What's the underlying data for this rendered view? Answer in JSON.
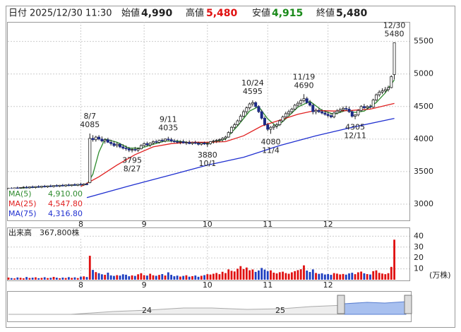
{
  "header": {
    "items": [
      {
        "label": "日付",
        "value": "2025/12/30 11:30"
      },
      {
        "label": "始値",
        "value": "4,990"
      },
      {
        "label": "高値",
        "value": "5,480"
      },
      {
        "label": "安値",
        "value": "4,915"
      },
      {
        "label": "終値",
        "value": "5,480"
      }
    ]
  },
  "chart_data": [
    {
      "type": "candlestick",
      "categories": [
        null,
        null,
        null,
        null,
        null,
        null,
        null,
        null,
        null,
        null,
        null,
        null,
        null,
        null,
        null,
        null,
        null,
        null,
        null,
        null,
        null,
        null,
        null,
        null,
        null,
        null,
        null,
        "8/7",
        null,
        null,
        null,
        null,
        null,
        null,
        null,
        null,
        null,
        null,
        null,
        null,
        null,
        "8/27",
        null,
        null,
        null,
        null,
        null,
        null,
        null,
        null,
        null,
        null,
        null,
        "9/11",
        null,
        null,
        null,
        null,
        null,
        null,
        null,
        null,
        null,
        null,
        null,
        null,
        "10/1",
        null,
        null,
        null,
        null,
        null,
        null,
        null,
        null,
        null,
        null,
        null,
        null,
        null,
        null,
        "10/24",
        null,
        null,
        null,
        null,
        null,
        "11/4",
        null,
        null,
        null,
        null,
        null,
        null,
        null,
        null,
        null,
        null,
        "11/19",
        null,
        null,
        null,
        null,
        null,
        null,
        null,
        null,
        null,
        null,
        null,
        null,
        null,
        null,
        null,
        null,
        "12/11",
        null,
        null,
        null,
        null,
        null,
        null,
        null,
        null,
        null,
        null,
        null,
        null,
        "12/30"
      ],
      "ohlc": [
        [
          3230,
          3250,
          3210,
          3240
        ],
        [
          3240,
          3260,
          3220,
          3235
        ],
        [
          3235,
          3255,
          3215,
          3250
        ],
        [
          3250,
          3270,
          3230,
          3245
        ],
        [
          3245,
          3260,
          3225,
          3255
        ],
        [
          3255,
          3275,
          3240,
          3260
        ],
        [
          3260,
          3280,
          3240,
          3250
        ],
        [
          3250,
          3270,
          3235,
          3265
        ],
        [
          3265,
          3285,
          3245,
          3255
        ],
        [
          3255,
          3275,
          3240,
          3270
        ],
        [
          3270,
          3290,
          3250,
          3260
        ],
        [
          3260,
          3280,
          3245,
          3275
        ],
        [
          3275,
          3295,
          3255,
          3265
        ],
        [
          3265,
          3285,
          3250,
          3280
        ],
        [
          3280,
          3300,
          3260,
          3270
        ],
        [
          3270,
          3290,
          3255,
          3285
        ],
        [
          3285,
          3305,
          3265,
          3275
        ],
        [
          3275,
          3295,
          3260,
          3290
        ],
        [
          3290,
          3310,
          3270,
          3280
        ],
        [
          3280,
          3300,
          3265,
          3295
        ],
        [
          3295,
          3315,
          3275,
          3285
        ],
        [
          3285,
          3305,
          3270,
          3300
        ],
        [
          3300,
          3320,
          3280,
          3290
        ],
        [
          3290,
          3310,
          3275,
          3305
        ],
        [
          3305,
          3330,
          3285,
          3295
        ],
        [
          3295,
          3320,
          3280,
          3310
        ],
        [
          3310,
          3330,
          3290,
          3300
        ],
        [
          3330,
          4085,
          3320,
          4010
        ],
        [
          4010,
          4060,
          3960,
          3990
        ],
        [
          3990,
          4050,
          3960,
          4030
        ],
        [
          4030,
          4060,
          3980,
          4000
        ],
        [
          4000,
          4040,
          3950,
          3970
        ],
        [
          3970,
          4010,
          3930,
          3990
        ],
        [
          3990,
          4020,
          3940,
          3950
        ],
        [
          3950,
          3990,
          3900,
          3930
        ],
        [
          3930,
          3970,
          3880,
          3900
        ],
        [
          3900,
          3950,
          3870,
          3920
        ],
        [
          3920,
          3940,
          3860,
          3880
        ],
        [
          3880,
          3920,
          3840,
          3860
        ],
        [
          3860,
          3900,
          3820,
          3850
        ],
        [
          3850,
          3880,
          3800,
          3830
        ],
        [
          3830,
          3860,
          3795,
          3840
        ],
        [
          3840,
          3880,
          3810,
          3830
        ],
        [
          3830,
          3870,
          3800,
          3850
        ],
        [
          3850,
          3920,
          3840,
          3900
        ],
        [
          3900,
          3950,
          3880,
          3930
        ],
        [
          3930,
          3960,
          3890,
          3910
        ],
        [
          3910,
          3950,
          3880,
          3940
        ],
        [
          3940,
          3980,
          3910,
          3960
        ],
        [
          3960,
          3990,
          3930,
          3950
        ],
        [
          3950,
          3990,
          3930,
          3980
        ],
        [
          3980,
          4010,
          3950,
          3970
        ],
        [
          3970,
          4010,
          3950,
          4000
        ],
        [
          4000,
          4035,
          3970,
          3990
        ],
        [
          3990,
          4020,
          3950,
          3970
        ],
        [
          3970,
          4000,
          3940,
          3960
        ],
        [
          3960,
          3990,
          3930,
          3950
        ],
        [
          3950,
          3980,
          3920,
          3960
        ],
        [
          3960,
          3990,
          3930,
          3940
        ],
        [
          3940,
          3970,
          3910,
          3950
        ],
        [
          3950,
          3980,
          3920,
          3930
        ],
        [
          3930,
          3960,
          3910,
          3945
        ],
        [
          3945,
          3975,
          3920,
          3935
        ],
        [
          3935,
          3960,
          3900,
          3920
        ],
        [
          3920,
          3950,
          3900,
          3940
        ],
        [
          3940,
          3960,
          3910,
          3925
        ],
        [
          3925,
          3950,
          3880,
          3930
        ],
        [
          3930,
          3970,
          3910,
          3960
        ],
        [
          3960,
          3990,
          3930,
          3970
        ],
        [
          3970,
          4000,
          3940,
          3980
        ],
        [
          3980,
          4010,
          3950,
          3990
        ],
        [
          3990,
          4030,
          3960,
          4010
        ],
        [
          4010,
          4050,
          3980,
          4030
        ],
        [
          4030,
          4120,
          4020,
          4100
        ],
        [
          4100,
          4200,
          4080,
          4180
        ],
        [
          4180,
          4250,
          4150,
          4220
        ],
        [
          4220,
          4300,
          4200,
          4280
        ],
        [
          4280,
          4380,
          4260,
          4350
        ],
        [
          4350,
          4450,
          4330,
          4420
        ],
        [
          4420,
          4500,
          4380,
          4480
        ],
        [
          4480,
          4560,
          4450,
          4540
        ],
        [
          4540,
          4595,
          4500,
          4560
        ],
        [
          4560,
          4580,
          4480,
          4500
        ],
        [
          4500,
          4520,
          4400,
          4420
        ],
        [
          4420,
          4450,
          4300,
          4320
        ],
        [
          4320,
          4350,
          4200,
          4220
        ],
        [
          4220,
          4250,
          4120,
          4150
        ],
        [
          4150,
          4200,
          4080,
          4180
        ],
        [
          4180,
          4230,
          4140,
          4200
        ],
        [
          4200,
          4250,
          4160,
          4220
        ],
        [
          4220,
          4300,
          4200,
          4280
        ],
        [
          4280,
          4360,
          4260,
          4340
        ],
        [
          4340,
          4420,
          4310,
          4390
        ],
        [
          4390,
          4450,
          4360,
          4420
        ],
        [
          4420,
          4480,
          4390,
          4460
        ],
        [
          4460,
          4540,
          4440,
          4520
        ],
        [
          4520,
          4580,
          4490,
          4550
        ],
        [
          4550,
          4620,
          4520,
          4590
        ],
        [
          4590,
          4690,
          4560,
          4620
        ],
        [
          4620,
          4650,
          4540,
          4560
        ],
        [
          4560,
          4600,
          4500,
          4520
        ],
        [
          4520,
          4550,
          4380,
          4420
        ],
        [
          4420,
          4470,
          4380,
          4440
        ],
        [
          4440,
          4480,
          4400,
          4420
        ],
        [
          4420,
          4460,
          4380,
          4400
        ],
        [
          4400,
          4440,
          4360,
          4380
        ],
        [
          4380,
          4420,
          4330,
          4360
        ],
        [
          4360,
          4400,
          4320,
          4340
        ],
        [
          4340,
          4420,
          4320,
          4400
        ],
        [
          4400,
          4460,
          4380,
          4430
        ],
        [
          4430,
          4480,
          4400,
          4450
        ],
        [
          4450,
          4500,
          4420,
          4470
        ],
        [
          4470,
          4510,
          4430,
          4460
        ],
        [
          4460,
          4500,
          4400,
          4420
        ],
        [
          4420,
          4440,
          4330,
          4350
        ],
        [
          4350,
          4380,
          4305,
          4370
        ],
        [
          4370,
          4460,
          4350,
          4440
        ],
        [
          4440,
          4520,
          4420,
          4500
        ],
        [
          4500,
          4540,
          4460,
          4480
        ],
        [
          4480,
          4520,
          4450,
          4500
        ],
        [
          4500,
          4530,
          4470,
          4490
        ],
        [
          4490,
          4620,
          4480,
          4600
        ],
        [
          4600,
          4700,
          4580,
          4680
        ],
        [
          4680,
          4750,
          4650,
          4720
        ],
        [
          4720,
          4780,
          4690,
          4740
        ],
        [
          4740,
          4800,
          4710,
          4760
        ],
        [
          4760,
          4820,
          4730,
          4790
        ],
        [
          4790,
          4980,
          4780,
          4960
        ],
        [
          4990,
          5480,
          4915,
          5480
        ]
      ],
      "up_color": "#ffffff",
      "down_color": "#1c2a86",
      "series": [
        {
          "name": "MA(5)",
          "color": "#2e8b2e",
          "legend_value": "4,910.00",
          "x": [
            4,
            10,
            16,
            22,
            26,
            28,
            30,
            32,
            36,
            40,
            44,
            48,
            52,
            56,
            60,
            64,
            68,
            72,
            76,
            80,
            83,
            86,
            89,
            92,
            96,
            100,
            104,
            108,
            112,
            115,
            118,
            122,
            125,
            128
          ],
          "values": [
            3245,
            3262,
            3280,
            3290,
            3300,
            3460,
            3800,
            4000,
            3950,
            3860,
            3860,
            3920,
            3970,
            3970,
            3945,
            3935,
            3950,
            4000,
            4200,
            4430,
            4500,
            4310,
            4190,
            4310,
            4490,
            4580,
            4440,
            4380,
            4440,
            4410,
            4430,
            4560,
            4710,
            4910
          ]
        },
        {
          "name": "MA(25)",
          "color": "#e02020",
          "legend_value": "4,547.80",
          "x": [
            24,
            30,
            36,
            42,
            48,
            54,
            60,
            66,
            72,
            78,
            84,
            90,
            96,
            102,
            108,
            114,
            120,
            128
          ],
          "values": [
            3270,
            3420,
            3600,
            3760,
            3880,
            3930,
            3950,
            3950,
            3960,
            4050,
            4200,
            4290,
            4380,
            4440,
            4430,
            4440,
            4460,
            4547.8
          ]
        },
        {
          "name": "MA(75)",
          "color": "#2030d0",
          "legend_value": "4,316.80",
          "x": [
            26,
            40,
            54,
            66,
            78,
            90,
            102,
            114,
            128
          ],
          "values": [
            3100,
            3280,
            3450,
            3600,
            3720,
            3900,
            4050,
            4180,
            4316.8
          ]
        }
      ],
      "annotations": [
        {
          "label": "8/7",
          "value": 4085
        },
        {
          "label": "8/27",
          "value": 3795
        },
        {
          "label": "9/11",
          "value": 4035
        },
        {
          "label": "10/1",
          "value": 3880
        },
        {
          "label": "10/24",
          "value": 4595
        },
        {
          "label": "11/4",
          "value": 4080
        },
        {
          "label": "11/19",
          "value": 4690
        },
        {
          "label": "12/11",
          "value": 4305
        },
        {
          "label": "12/30",
          "value": 5480
        }
      ],
      "ylim": [
        2750,
        5800
      ],
      "yticks": [
        3000,
        3500,
        4000,
        4500,
        5000,
        5500
      ],
      "xticks": [
        {
          "value": 24,
          "label": "8"
        },
        {
          "value": 45,
          "label": "9"
        },
        {
          "value": 66,
          "label": "10"
        },
        {
          "value": 86,
          "label": "11"
        },
        {
          "value": 106,
          "label": "12"
        }
      ],
      "grid": true
    },
    {
      "type": "bar",
      "title": "出来高",
      "total_label": "367,800株",
      "unit": "(万株)",
      "values": [
        2,
        1.5,
        1.2,
        2.1,
        1.8,
        1.3,
        2.5,
        1.6,
        1.9,
        2.2,
        1.4,
        1.7,
        2.3,
        1.5,
        1.8,
        2.6,
        1.9,
        1.4,
        2.0,
        1.6,
        2.4,
        1.7,
        2.2,
        1.5,
        2.8,
        3.1,
        2.5,
        22,
        9,
        7,
        6,
        5,
        4.5,
        6.5,
        4,
        3.5,
        4.2,
        3.8,
        5,
        4.6,
        3.2,
        4,
        3.5,
        5,
        6,
        4.2,
        3.8,
        5.5,
        4.1,
        3.6,
        4.4,
        5.2,
        3.9,
        6.8,
        4.5,
        3.2,
        3.8,
        2.9,
        3.5,
        4.1,
        2.8,
        3.3,
        3.9,
        2.7,
        3.6,
        4.2,
        5.1,
        4.8,
        5.5,
        6.2,
        5.1,
        7.3,
        6.1,
        9.5,
        8.2,
        7.6,
        10.1,
        12.5,
        9.8,
        11.2,
        8.7,
        9.4,
        7.2,
        8.5,
        10.8,
        9.3,
        7.9,
        8.6,
        6.5,
        5.8,
        6.9,
        7.4,
        6.1,
        5.5,
        6.8,
        7.9,
        8.8,
        9.6,
        13.2,
        8.4,
        7.1,
        9.5,
        6.2,
        5.4,
        5.9,
        4.8,
        5.2,
        4.5,
        6.1,
        5.6,
        4.9,
        5.3,
        4.7,
        5.8,
        6.4,
        5.1,
        6.8,
        7.5,
        5.9,
        5.2,
        4.8,
        7.9,
        8.6,
        6.3,
        5.7,
        5.1,
        6.0,
        11.8,
        36.78
      ],
      "up_color": "#e01010",
      "down_color": "#1f3fc0",
      "ylim": [
        0,
        48
      ],
      "yticks": [
        10,
        20,
        30,
        40
      ],
      "xticks": [
        {
          "value": 24,
          "label": "8"
        },
        {
          "value": 45,
          "label": "9"
        },
        {
          "value": 66,
          "label": "10"
        },
        {
          "value": 86,
          "label": "11"
        },
        {
          "value": 106,
          "label": "12"
        }
      ]
    }
  ],
  "navigator": {
    "labels": [
      "24",
      "25"
    ]
  }
}
